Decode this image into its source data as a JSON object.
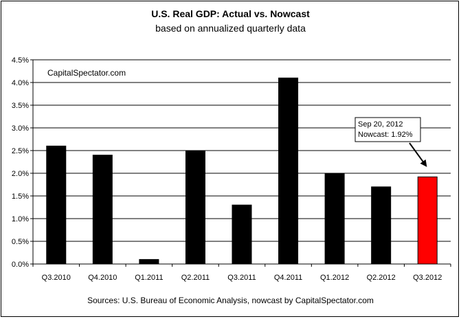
{
  "chart_data": {
    "type": "bar",
    "title": "U.S. Real GDP: Actual vs. Nowcast",
    "subtitle": "based on annualized quarterly data",
    "watermark": "CapitalSpectator.com",
    "source": "Sources: U.S. Bureau of Economic Analysis, nowcast by CapitalSpectator.com",
    "categories": [
      "Q3.2010",
      "Q4.2010",
      "Q1.2011",
      "Q2.2011",
      "Q3.2011",
      "Q4.2011",
      "Q1.2012",
      "Q2.2012",
      "Q3.2012"
    ],
    "values": [
      2.6,
      2.4,
      0.1,
      2.5,
      1.3,
      4.1,
      2.0,
      1.7,
      1.92
    ],
    "bar_colors": [
      "#000000",
      "#000000",
      "#000000",
      "#000000",
      "#000000",
      "#000000",
      "#000000",
      "#000000",
      "#ff0000"
    ],
    "yticks": [
      "0.0%",
      "0.5%",
      "1.0%",
      "1.5%",
      "2.0%",
      "2.5%",
      "3.0%",
      "3.5%",
      "4.0%",
      "4.5%"
    ],
    "ylim": [
      0,
      4.5
    ],
    "grid": true,
    "annotation": {
      "line1": "Sep 20, 2012",
      "line2": "Nowcast: 1.92%",
      "target_category": "Q3.2012"
    }
  }
}
